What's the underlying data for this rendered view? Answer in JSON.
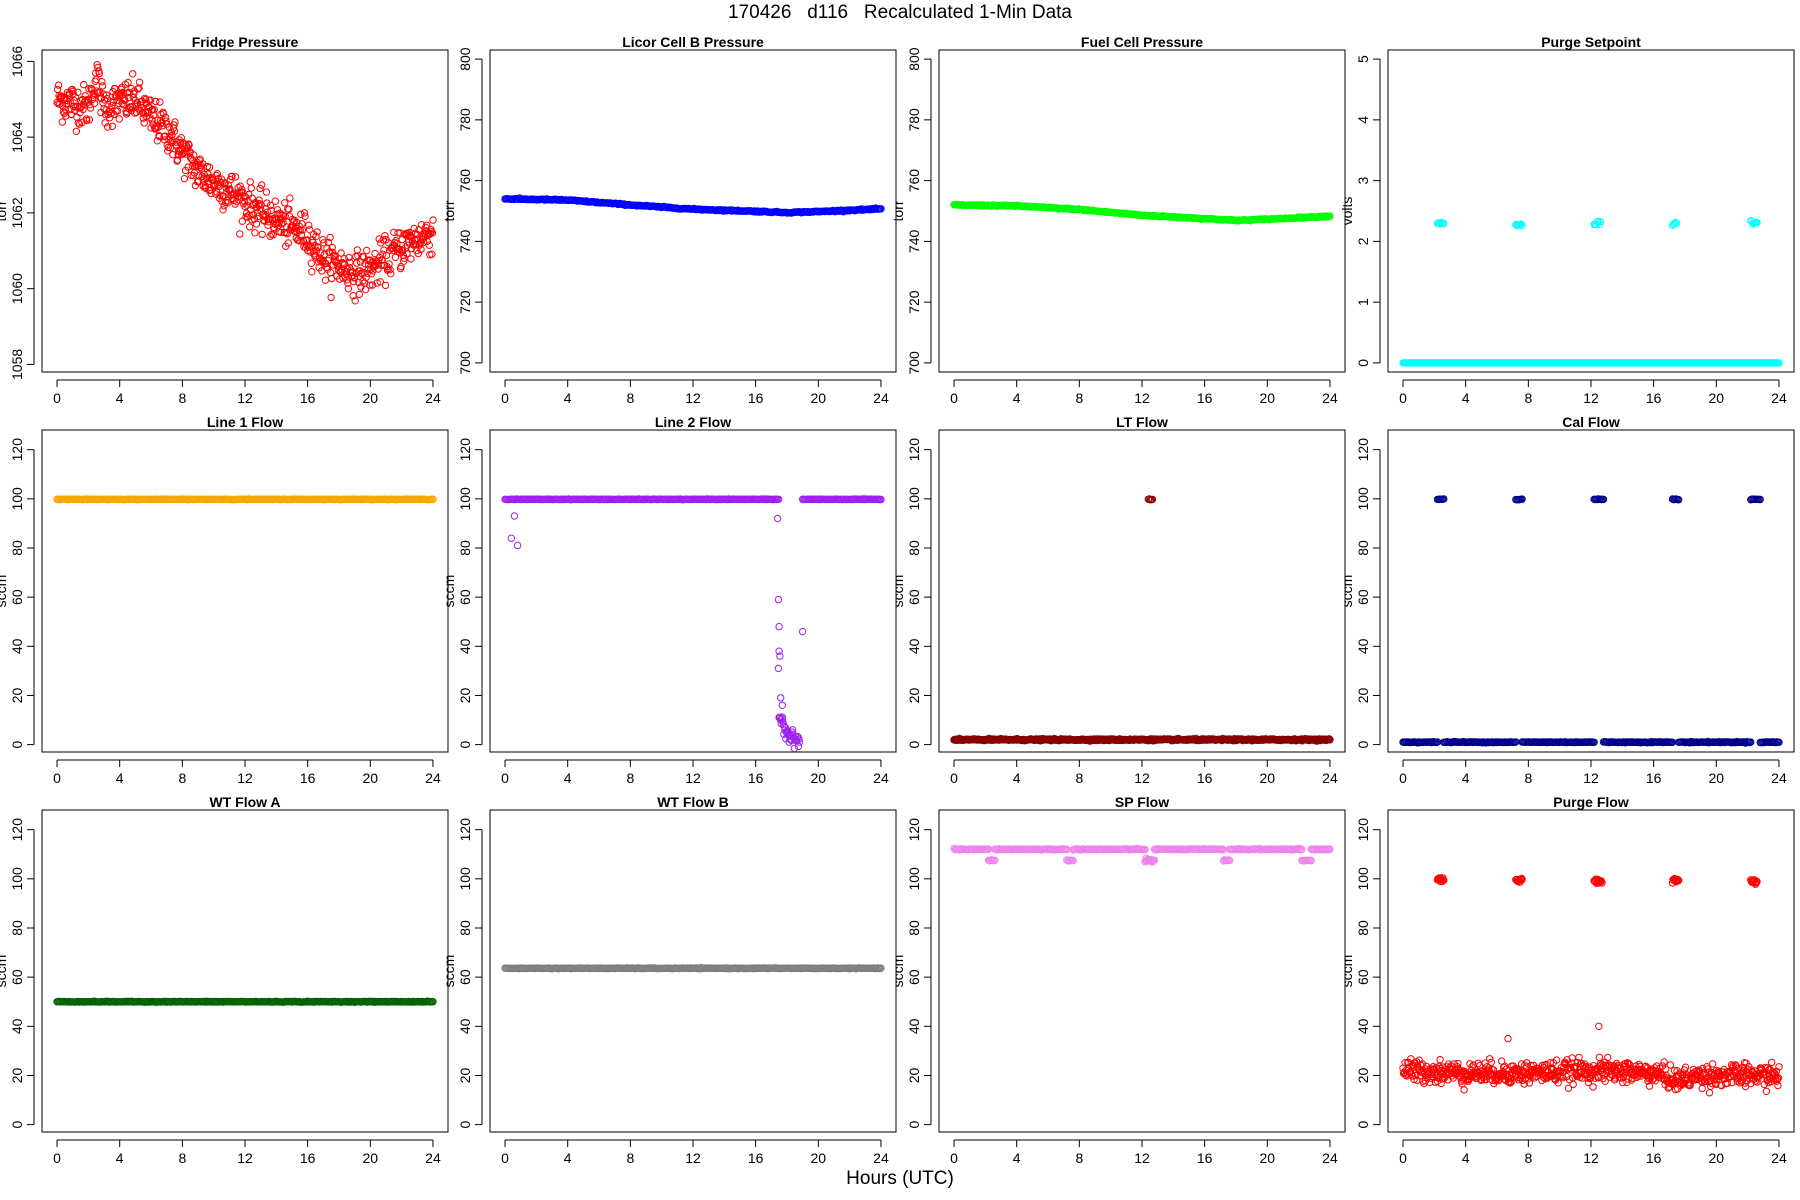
{
  "figure": {
    "title": "170426   d116   Recalculated 1-Min Data",
    "xlabel": "Hours (UTC)"
  },
  "chart_data": [
    {
      "type": "scatter",
      "title": "Fridge Pressure",
      "ylabel": "torr",
      "xlim": [
        0,
        24
      ],
      "ylim": [
        1057.8,
        1066.3
      ],
      "xticks": [
        0,
        4,
        8,
        12,
        16,
        20,
        24
      ],
      "yticks": [
        1058,
        1060,
        1062,
        1064,
        1066
      ],
      "color": "#ff0000",
      "series": [
        {
          "segments": [
            {
              "x": [
                0,
                1,
                2,
                2.5,
                3,
                4,
                5,
                6,
                7,
                8,
                9,
                10,
                11,
                12,
                13,
                14,
                15,
                16,
                17,
                18,
                19,
                20,
                21,
                22,
                23,
                24
              ],
              "y": [
                1065.0,
                1064.9,
                1064.8,
                1065.6,
                1064.8,
                1064.9,
                1065.0,
                1064.5,
                1064.2,
                1063.6,
                1063.1,
                1062.8,
                1062.6,
                1062.3,
                1062.0,
                1061.8,
                1061.6,
                1061.4,
                1060.8,
                1060.6,
                1060.4,
                1060.5,
                1060.8,
                1061.1,
                1061.3,
                1061.5
              ],
              "noise": 0.55
            }
          ]
        }
      ]
    },
    {
      "type": "scatter",
      "title": "Licor Cell B Pressure",
      "ylabel": "torr",
      "xlim": [
        0,
        24
      ],
      "ylim": [
        697,
        803
      ],
      "xticks": [
        0,
        4,
        8,
        12,
        16,
        20,
        24
      ],
      "yticks": [
        700,
        720,
        740,
        760,
        780,
        800
      ],
      "color": "#0000ff",
      "series": [
        {
          "segments": [
            {
              "x": [
                0,
                4,
                8,
                12,
                16,
                18,
                20,
                24
              ],
              "y": [
                754,
                753.6,
                752,
                750.6,
                749.9,
                749.5,
                749.8,
                750.7
              ],
              "noise": 0.2
            }
          ]
        }
      ]
    },
    {
      "type": "scatter",
      "title": "Fuel Cell Pressure",
      "ylabel": "torr",
      "xlim": [
        0,
        24
      ],
      "ylim": [
        697,
        803
      ],
      "xticks": [
        0,
        4,
        8,
        12,
        16,
        20,
        24
      ],
      "yticks": [
        700,
        720,
        740,
        760,
        780,
        800
      ],
      "color": "#00ff00",
      "series": [
        {
          "segments": [
            {
              "x": [
                0,
                4,
                8,
                12,
                16,
                18,
                20,
                24
              ],
              "y": [
                752,
                751.7,
                750.5,
                748.6,
                747.5,
                746.9,
                747.3,
                748.3
              ],
              "noise": 0.2
            }
          ]
        }
      ]
    },
    {
      "type": "scatter",
      "title": "Purge Setpoint",
      "ylabel": "volts",
      "xlim": [
        0,
        24
      ],
      "ylim": [
        -0.15,
        5.15
      ],
      "xticks": [
        0,
        4,
        8,
        12,
        16,
        20,
        24
      ],
      "yticks": [
        0,
        1,
        2,
        3,
        4,
        5
      ],
      "color": "#00ffff",
      "series": [
        {
          "segments": [
            {
              "x": [
                0,
                24
              ],
              "y": [
                0,
                0
              ],
              "noise": 0
            },
            {
              "x": [
                2.2,
                2.6
              ],
              "y": [
                2.3,
                2.3
              ],
              "noise": 0.04
            },
            {
              "x": [
                7.2,
                7.6
              ],
              "y": [
                2.28,
                2.28
              ],
              "noise": 0.04
            },
            {
              "x": [
                12.2,
                12.6
              ],
              "y": [
                2.3,
                2.3
              ],
              "noise": 0.04
            },
            {
              "x": [
                17.2,
                17.5
              ],
              "y": [
                2.29,
                2.29
              ],
              "noise": 0.04
            },
            {
              "x": [
                22.2,
                22.6
              ],
              "y": [
                2.32,
                2.32
              ],
              "noise": 0.04
            }
          ]
        }
      ]
    },
    {
      "type": "scatter",
      "title": "Line 1 Flow",
      "ylabel": "sccm",
      "xlim": [
        0,
        24
      ],
      "ylim": [
        -3,
        128
      ],
      "xticks": [
        0,
        4,
        8,
        12,
        16,
        20,
        24
      ],
      "yticks": [
        0,
        20,
        40,
        60,
        80,
        100,
        120
      ],
      "color": "#ffa500",
      "series": [
        {
          "segments": [
            {
              "x": [
                0,
                24
              ],
              "y": [
                99.8,
                99.8
              ],
              "noise": 0.1
            }
          ]
        }
      ]
    },
    {
      "type": "scatter",
      "title": "Line 2 Flow",
      "ylabel": "sccm",
      "xlim": [
        0,
        24
      ],
      "ylim": [
        -3,
        128
      ],
      "xticks": [
        0,
        4,
        8,
        12,
        16,
        20,
        24
      ],
      "yticks": [
        0,
        20,
        40,
        60,
        80,
        100,
        120
      ],
      "color": "#a020f0",
      "series": [
        {
          "segments": [
            {
              "x": [
                0,
                17.5
              ],
              "y": [
                99.8,
                99.8
              ],
              "noise": 0.1
            },
            {
              "x": [
                19.0,
                24
              ],
              "y": [
                99.8,
                99.8
              ],
              "noise": 0.1
            },
            {
              "x": [
                17.5,
                17.8,
                18.2,
                18.8
              ],
              "y": [
                12,
                8,
                3,
                1.5
              ],
              "noise": 3
            }
          ],
          "points": [
            {
              "x": 0.4,
              "y": 84
            },
            {
              "x": 0.6,
              "y": 93
            },
            {
              "x": 0.8,
              "y": 81
            },
            {
              "x": 17.4,
              "y": 92
            },
            {
              "x": 17.45,
              "y": 59
            },
            {
              "x": 17.5,
              "y": 48
            },
            {
              "x": 17.5,
              "y": 38
            },
            {
              "x": 17.55,
              "y": 36
            },
            {
              "x": 17.45,
              "y": 31
            },
            {
              "x": 19.0,
              "y": 46
            },
            {
              "x": 17.6,
              "y": 19
            },
            {
              "x": 17.7,
              "y": 16
            }
          ]
        }
      ]
    },
    {
      "type": "scatter",
      "title": "LT Flow",
      "ylabel": "sccm",
      "xlim": [
        0,
        24
      ],
      "ylim": [
        -3,
        128
      ],
      "xticks": [
        0,
        4,
        8,
        12,
        16,
        20,
        24
      ],
      "yticks": [
        0,
        20,
        40,
        60,
        80,
        100,
        120
      ],
      "color": "#8b0000",
      "series": [
        {
          "segments": [
            {
              "x": [
                0,
                24
              ],
              "y": [
                2,
                2
              ],
              "noise": 0.35
            },
            {
              "x": [
                12.4,
                12.7
              ],
              "y": [
                99.8,
                99.8
              ],
              "noise": 0.2
            }
          ]
        }
      ]
    },
    {
      "type": "scatter",
      "title": "Cal Flow",
      "ylabel": "sccm",
      "xlim": [
        0,
        24
      ],
      "ylim": [
        -3,
        128
      ],
      "xticks": [
        0,
        4,
        8,
        12,
        16,
        20,
        24
      ],
      "yticks": [
        0,
        20,
        40,
        60,
        80,
        100,
        120
      ],
      "color": "#00008b",
      "series": [
        {
          "segments": [
            {
              "x": [
                0,
                2.2
              ],
              "y": [
                1,
                1
              ],
              "noise": 0.2
            },
            {
              "x": [
                2.6,
                7.2
              ],
              "y": [
                1,
                1
              ],
              "noise": 0.2
            },
            {
              "x": [
                7.6,
                12.2
              ],
              "y": [
                1,
                1
              ],
              "noise": 0.2
            },
            {
              "x": [
                12.8,
                17.2
              ],
              "y": [
                1,
                1
              ],
              "noise": 0.2
            },
            {
              "x": [
                17.6,
                22.2
              ],
              "y": [
                1,
                1
              ],
              "noise": 0.2
            },
            {
              "x": [
                22.8,
                24
              ],
              "y": [
                1,
                1
              ],
              "noise": 0.2
            },
            {
              "x": [
                2.2,
                2.6
              ],
              "y": [
                99.8,
                99.8
              ],
              "noise": 0.2
            },
            {
              "x": [
                7.2,
                7.6
              ],
              "y": [
                99.8,
                99.8
              ],
              "noise": 0.2
            },
            {
              "x": [
                12.2,
                12.8
              ],
              "y": [
                99.8,
                99.8
              ],
              "noise": 0.2
            },
            {
              "x": [
                17.2,
                17.6
              ],
              "y": [
                99.8,
                99.8
              ],
              "noise": 0.2
            },
            {
              "x": [
                22.2,
                22.8
              ],
              "y": [
                99.8,
                99.8
              ],
              "noise": 0.2
            }
          ]
        }
      ]
    },
    {
      "type": "scatter",
      "title": "WT Flow A",
      "ylabel": "sccm",
      "xlim": [
        0,
        24
      ],
      "ylim": [
        -3,
        128
      ],
      "xticks": [
        0,
        4,
        8,
        12,
        16,
        20,
        24
      ],
      "yticks": [
        0,
        20,
        40,
        60,
        80,
        100,
        120
      ],
      "color": "#006400",
      "series": [
        {
          "segments": [
            {
              "x": [
                0,
                24
              ],
              "y": [
                50,
                50
              ],
              "noise": 0.15
            }
          ]
        }
      ]
    },
    {
      "type": "scatter",
      "title": "WT Flow B",
      "ylabel": "sccm",
      "xlim": [
        0,
        24
      ],
      "ylim": [
        -3,
        128
      ],
      "xticks": [
        0,
        4,
        8,
        12,
        16,
        20,
        24
      ],
      "yticks": [
        0,
        20,
        40,
        60,
        80,
        100,
        120
      ],
      "color": "#808080",
      "series": [
        {
          "segments": [
            {
              "x": [
                0,
                24
              ],
              "y": [
                63.6,
                63.6
              ],
              "noise": 0.15
            }
          ]
        }
      ]
    },
    {
      "type": "scatter",
      "title": "SP Flow",
      "ylabel": "sccm",
      "xlim": [
        0,
        24
      ],
      "ylim": [
        -3,
        128
      ],
      "xticks": [
        0,
        4,
        8,
        12,
        16,
        20,
        24
      ],
      "yticks": [
        0,
        20,
        40,
        60,
        80,
        100,
        120
      ],
      "color": "#ee82ee",
      "series": [
        {
          "segments": [
            {
              "x": [
                0,
                2.2
              ],
              "y": [
                112,
                112
              ],
              "noise": 0.2
            },
            {
              "x": [
                2.6,
                7.2
              ],
              "y": [
                112,
                112
              ],
              "noise": 0.2
            },
            {
              "x": [
                7.6,
                12.2
              ],
              "y": [
                112,
                112
              ],
              "noise": 0.2
            },
            {
              "x": [
                12.8,
                17.2
              ],
              "y": [
                112,
                112
              ],
              "noise": 0.2
            },
            {
              "x": [
                17.6,
                22.2
              ],
              "y": [
                112,
                112
              ],
              "noise": 0.2
            },
            {
              "x": [
                22.8,
                24
              ],
              "y": [
                112,
                112
              ],
              "noise": 0.2
            },
            {
              "x": [
                2.2,
                2.6
              ],
              "y": [
                107.5,
                107.5
              ],
              "noise": 0.3
            },
            {
              "x": [
                7.2,
                7.6
              ],
              "y": [
                107.5,
                107.5
              ],
              "noise": 0.3
            },
            {
              "x": [
                12.2,
                12.8
              ],
              "y": [
                107.5,
                107.5
              ],
              "noise": 0.8
            },
            {
              "x": [
                17.2,
                17.6
              ],
              "y": [
                107.5,
                107.5
              ],
              "noise": 0.3
            },
            {
              "x": [
                22.2,
                22.8
              ],
              "y": [
                107.5,
                107.5
              ],
              "noise": 0.3
            }
          ]
        }
      ]
    },
    {
      "type": "scatter",
      "title": "Purge Flow",
      "ylabel": "sccm",
      "xlim": [
        0,
        24
      ],
      "ylim": [
        -3,
        128
      ],
      "xticks": [
        0,
        4,
        8,
        12,
        16,
        20,
        24
      ],
      "yticks": [
        0,
        20,
        40,
        60,
        80,
        100,
        120
      ],
      "color": "#ff0000",
      "series": [
        {
          "segments": [
            {
              "x": [
                0,
                4,
                8,
                12,
                16,
                17.5,
                19,
                24
              ],
              "y": [
                22,
                21,
                21,
                22,
                21,
                18,
                20,
                20
              ],
              "noise": 4.5
            },
            {
              "x": [
                2.2,
                2.6
              ],
              "y": [
                99.5,
                99.5
              ],
              "noise": 1
            },
            {
              "x": [
                7.2,
                7.6
              ],
              "y": [
                99.5,
                99.5
              ],
              "noise": 1
            },
            {
              "x": [
                12.2,
                12.7
              ],
              "y": [
                99,
                99
              ],
              "noise": 1
            },
            {
              "x": [
                17.2,
                17.6
              ],
              "y": [
                99.5,
                99.5
              ],
              "noise": 1
            },
            {
              "x": [
                22.2,
                22.6
              ],
              "y": [
                99,
                99
              ],
              "noise": 1
            }
          ],
          "points": [
            {
              "x": 12.5,
              "y": 40
            },
            {
              "x": 6.7,
              "y": 35
            }
          ]
        }
      ]
    }
  ]
}
